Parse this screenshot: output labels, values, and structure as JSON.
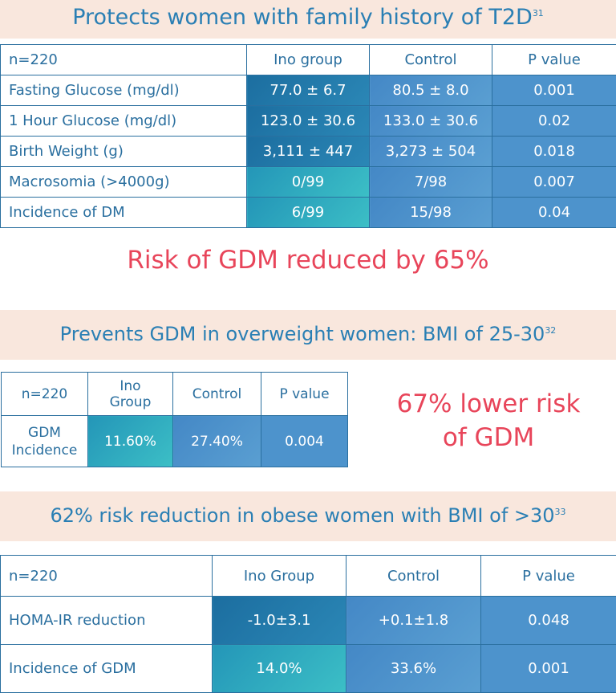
{
  "section1": {
    "title": "Protects women with family history of T2D",
    "ref": "31",
    "headers": [
      "n=220",
      "Ino group",
      "Control",
      "P value"
    ],
    "rows": [
      {
        "label": "Fasting Glucose (mg/dl)",
        "ino": "77.0 ± 6.7",
        "control": "80.5 ± 8.0",
        "p": "0.001"
      },
      {
        "label": "1 Hour Glucose (mg/dl)",
        "ino": "123.0 ± 30.6",
        "control": "133.0 ± 30.6",
        "p": "0.02"
      },
      {
        "label": "Birth Weight (g)",
        "ino": "3,111 ± 447",
        "control": "3,273 ± 504",
        "p": "0.018"
      },
      {
        "label": "Macrosomia (>4000g)",
        "ino": "0/99",
        "control": "7/98",
        "p": "0.007"
      },
      {
        "label": "Incidence of DM",
        "ino": "6/99",
        "control": "15/98",
        "p": "0.04"
      }
    ],
    "callout": "Risk of GDM reduced by 65%"
  },
  "section2": {
    "title": "Prevents GDM in overweight women: BMI of 25-30",
    "ref": "32",
    "headers": [
      "n=220",
      "Ino Group",
      "Control",
      "P value"
    ],
    "row": {
      "label_line1": "GDM",
      "label_line2": "Incidence",
      "ino": "11.60%",
      "control": "27.40%",
      "p": "0.004"
    },
    "callout_line1": "67% lower risk",
    "callout_line2": "of GDM"
  },
  "section3": {
    "title": "62% risk reduction in obese women with BMI of >30",
    "ref": "33",
    "headers": [
      "n=220",
      "Ino Group",
      "Control",
      "P value"
    ],
    "rows": [
      {
        "label": "HOMA-IR reduction",
        "ino": "-1.0±3.1",
        "control": "+0.1±1.8",
        "p": "0.048"
      },
      {
        "label": "Incidence of GDM",
        "ino": "14.0%",
        "control": "33.6%",
        "p": "0.001"
      }
    ]
  },
  "colors": {
    "title_blue": "#2a7fb4",
    "banner_bg": "#f9e7dd",
    "pink": "#e8455a",
    "cell_dark": "#1c6ea0",
    "cell_teal": "#3cbfc6",
    "cell_control": "#4d93cc"
  }
}
